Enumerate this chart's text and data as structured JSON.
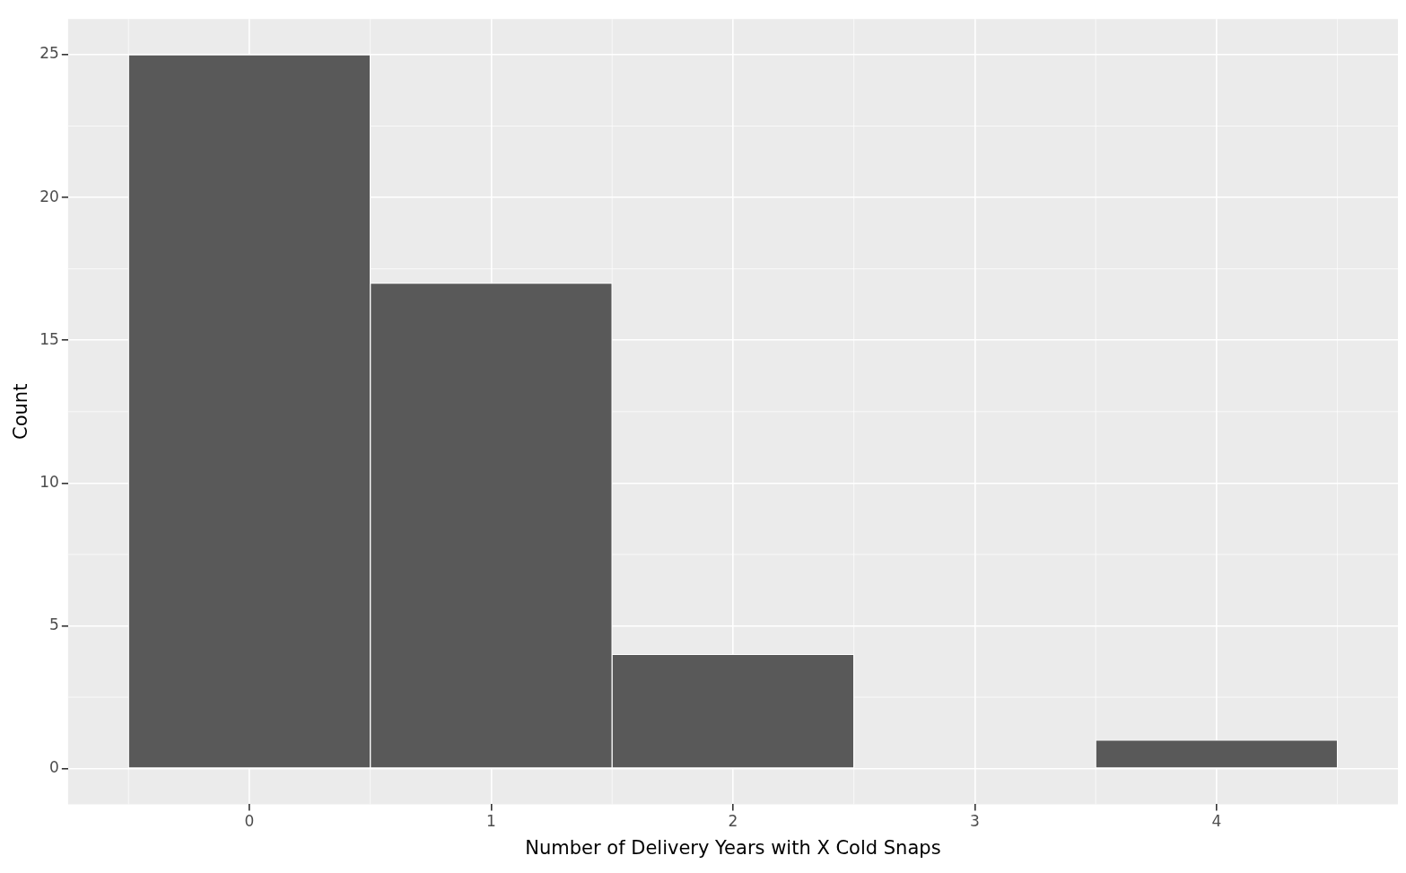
{
  "chart_data": {
    "type": "histogram",
    "xlabel": "Number of Delivery Years with X Cold Snaps",
    "ylabel": "Count",
    "bins": [
      -0.5,
      0.5,
      1.5,
      2.5,
      3.5,
      4.5
    ],
    "values": [
      25,
      17,
      4,
      0,
      1
    ],
    "color": "#595959",
    "xlim": [
      -0.75,
      4.75
    ],
    "xticks": [
      0,
      1,
      2,
      3,
      4
    ],
    "ylim": [
      -1.25,
      26.25
    ],
    "yticks": [
      0,
      5,
      10,
      15,
      20,
      25
    ],
    "grid": true,
    "legend": false
  }
}
